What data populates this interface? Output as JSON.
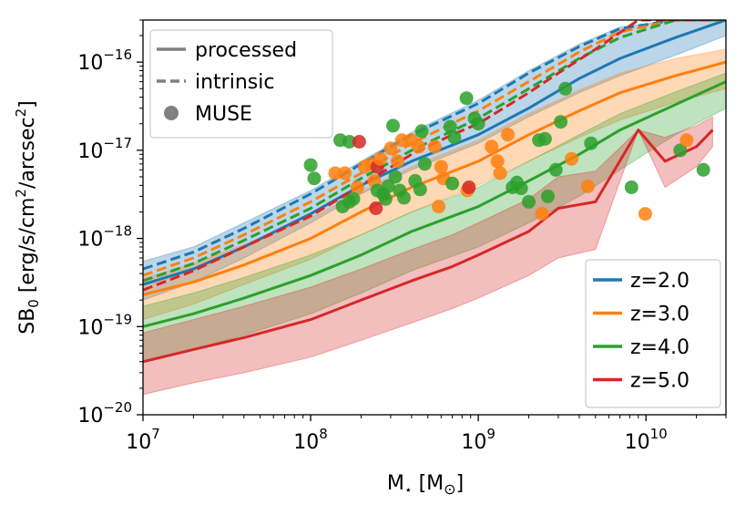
{
  "chart_data": {
    "type": "line",
    "xscale": "log",
    "yscale": "log",
    "xlim": [
      10000000.0,
      30000000000.0
    ],
    "ylim": [
      1e-20,
      3e-16
    ],
    "xlabel": "M⋆ [M⊙]",
    "xlabel_main": "M",
    "xlabel_sub": "⋆",
    "xlabel_unit_open": " [M",
    "xlabel_unit_sub": "⊙",
    "xlabel_unit_close": "]",
    "ylabel": "SB0 [erg/s/cm2/arcsec2]",
    "ylabel_main": "SB",
    "ylabel_sub": "0",
    "ylabel_unit_a": " [erg/s/cm",
    "ylabel_sup1": "2",
    "ylabel_unit_b": "/arcsec",
    "ylabel_sup2": "2",
    "ylabel_close": "]",
    "x_ticks": [
      {
        "value": 10000000.0,
        "base": "10",
        "exp": "7"
      },
      {
        "value": 100000000.0,
        "base": "10",
        "exp": "8"
      },
      {
        "value": 1000000000.0,
        "base": "10",
        "exp": "9"
      },
      {
        "value": 10000000000.0,
        "base": "10",
        "exp": "10"
      }
    ],
    "y_ticks": [
      {
        "value": 1e-20,
        "base": "10",
        "exp": "−20"
      },
      {
        "value": 1e-19,
        "base": "10",
        "exp": "−19"
      },
      {
        "value": 1e-18,
        "base": "10",
        "exp": "−18"
      },
      {
        "value": 1e-17,
        "base": "10",
        "exp": "−17"
      },
      {
        "value": 1e-16,
        "base": "10",
        "exp": "−16"
      }
    ],
    "style_legend": {
      "position": "top-left",
      "entries": [
        {
          "label": "processed",
          "kind": "solid"
        },
        {
          "label": "intrinsic",
          "kind": "dashed"
        },
        {
          "label": "MUSE",
          "kind": "marker"
        }
      ]
    },
    "color_legend": {
      "position": "bottom-right",
      "entries": [
        {
          "label": "z=2.0",
          "color": "#1f77b4"
        },
        {
          "label": "z=3.0",
          "color": "#ff7f0e"
        },
        {
          "label": "z=4.0",
          "color": "#2ca02c"
        },
        {
          "label": "z=5.0",
          "color": "#d62728"
        }
      ]
    },
    "series": [
      {
        "name": "z=2.0",
        "color": "#1f77b4",
        "x": [
          10000000.0,
          20000000.0,
          40000000.0,
          100000000.0,
          200000000.0,
          400000000.0,
          1000000000.0,
          2000000000.0,
          4000000000.0,
          7000000000.0,
          15000000000.0,
          30000000000.0
        ],
        "processed": [
          3e-19,
          4.5e-19,
          8e-19,
          1.9e-18,
          4e-18,
          7.5e-18,
          1.5e-17,
          3e-17,
          6.5e-17,
          1.1e-16,
          1.9e-16,
          3e-16
        ],
        "intrinsic": [
          4.5e-19,
          7e-19,
          1.3e-18,
          3.2e-18,
          7e-18,
          1.5e-17,
          3.4e-17,
          7.5e-17,
          1.5e-16,
          2.4e-16,
          3e-16,
          3e-16
        ],
        "band_low": [
          2e-19,
          3.2e-19,
          6e-19,
          1.5e-18,
          3.2e-18,
          6e-18,
          1.2e-17,
          2.4e-17,
          4.5e-17,
          7e-17,
          1.2e-16,
          2e-16
        ],
        "band_high": [
          5.5e-19,
          8e-19,
          1.5e-18,
          3.5e-18,
          7.5e-18,
          1.6e-17,
          3.7e-17,
          8e-17,
          1.6e-16,
          2.5e-16,
          3e-16,
          3e-16
        ]
      },
      {
        "name": "z=3.0",
        "color": "#ff7f0e",
        "x": [
          10000000.0,
          20000000.0,
          40000000.0,
          100000000.0,
          200000000.0,
          400000000.0,
          1000000000.0,
          2000000000.0,
          4000000000.0,
          7000000000.0,
          15000000000.0,
          30000000000.0
        ],
        "processed": [
          2.3e-19,
          3.2e-19,
          5e-19,
          1e-18,
          2e-18,
          3.8e-18,
          7.5e-18,
          1.5e-17,
          2.8e-17,
          4.5e-17,
          7e-17,
          1e-16
        ],
        "intrinsic": [
          3.8e-19,
          6e-19,
          1.1e-18,
          2.6e-18,
          5.5e-18,
          1.2e-17,
          2.8e-17,
          6e-17,
          1.3e-16,
          2.2e-16,
          3e-16,
          3e-16
        ],
        "band_low": [
          1.2e-19,
          1.8e-19,
          3e-19,
          5.8e-19,
          1.1e-18,
          2e-18,
          4e-18,
          7.5e-18,
          1.4e-17,
          2.2e-17,
          3.5e-17,
          5e-17
        ],
        "band_high": [
          3.5e-19,
          5.2e-19,
          8.5e-19,
          1.7e-18,
          3.4e-18,
          6.5e-18,
          1.3e-17,
          2.6e-17,
          4.8e-17,
          7.5e-17,
          1.1e-16,
          1.4e-16
        ]
      },
      {
        "name": "z=4.0",
        "color": "#2ca02c",
        "x": [
          10000000.0,
          20000000.0,
          40000000.0,
          100000000.0,
          200000000.0,
          400000000.0,
          1000000000.0,
          2000000000.0,
          4000000000.0,
          7000000000.0,
          15000000000.0,
          30000000000.0
        ],
        "processed": [
          1e-19,
          1.4e-19,
          2.1e-19,
          3.8e-19,
          6.5e-19,
          1.2e-18,
          2.3e-18,
          4.5e-18,
          9e-18,
          1.7e-17,
          3.3e-17,
          6e-17
        ],
        "intrinsic": [
          3.3e-19,
          5.2e-19,
          9.5e-19,
          2.2e-18,
          4.8e-18,
          1e-17,
          2.3e-17,
          5e-17,
          1.1e-16,
          1.9e-16,
          3e-16,
          3e-16
        ],
        "band_low": [
          4e-20,
          5.5e-20,
          8e-20,
          1.4e-19,
          2.4e-19,
          4.3e-19,
          8e-19,
          1.5e-18,
          3e-18,
          6e-18,
          1.5e-17,
          3e-17
        ],
        "band_high": [
          1.7e-19,
          2.4e-19,
          3.6e-19,
          6.5e-19,
          1.1e-18,
          2e-18,
          3.8e-18,
          7.5e-18,
          1.5e-17,
          2.6e-17,
          4.6e-17,
          7.5e-17
        ]
      },
      {
        "name": "z=5.0",
        "color": "#d62728",
        "x": [
          10000000.0,
          20000000.0,
          40000000.0,
          100000000.0,
          200000000.0,
          400000000.0,
          700000000.0,
          1000000000.0,
          2000000000.0,
          3000000000.0,
          5000000000.0,
          9000000000.0,
          13000000000.0,
          20000000000.0,
          25000000000.0
        ],
        "processed": [
          4e-20,
          5.5e-20,
          7.5e-20,
          1.2e-19,
          2e-19,
          3.3e-19,
          4.8e-19,
          6.5e-19,
          1.2e-18,
          2.2e-18,
          2.6e-18,
          1.7e-17,
          7.5e-18,
          1.1e-17,
          1.7e-17
        ],
        "intrinsic": [
          2.6e-19,
          4.3e-19,
          8e-19,
          1.8e-18,
          4e-18,
          9e-18,
          1.5e-17,
          2e-17,
          4.5e-17,
          7.5e-17,
          1.4e-16,
          3e-16,
          3e-16,
          3e-16,
          3e-16
        ],
        "band_low": [
          1.7e-20,
          2.3e-20,
          3e-20,
          4.5e-20,
          7e-20,
          1.1e-19,
          1.6e-19,
          2.1e-19,
          3.8e-19,
          6e-19,
          7.5e-19,
          1.7e-17,
          3.8e-18,
          6.5e-18,
          1.1e-17
        ],
        "band_high": [
          8.5e-20,
          1.2e-19,
          1.7e-19,
          2.8e-19,
          4.5e-19,
          7.5e-19,
          1.1e-18,
          1.5e-18,
          2.8e-18,
          5e-18,
          5.8e-18,
          1.7e-17,
          1.4e-17,
          1.9e-17,
          2.4e-17
        ]
      }
    ],
    "muse_points": [
      {
        "x": 150000000.0,
        "y": 1.3e-17,
        "color": "#2ca02c"
      },
      {
        "x": 170000000.0,
        "y": 1.25e-17,
        "color": "#2ca02c"
      },
      {
        "x": 195000000.0,
        "y": 1.25e-17,
        "color": "#d62728"
      },
      {
        "x": 100000000.0,
        "y": 6.8e-18,
        "color": "#2ca02c"
      },
      {
        "x": 105000000.0,
        "y": 4.8e-18,
        "color": "#2ca02c"
      },
      {
        "x": 140000000.0,
        "y": 5.5e-18,
        "color": "#ff7f0e"
      },
      {
        "x": 160000000.0,
        "y": 5.5e-18,
        "color": "#ff7f0e"
      },
      {
        "x": 190000000.0,
        "y": 3.8e-18,
        "color": "#ff7f0e"
      },
      {
        "x": 180000000.0,
        "y": 2.8e-18,
        "color": "#2ca02c"
      },
      {
        "x": 155000000.0,
        "y": 2.3e-18,
        "color": "#2ca02c"
      },
      {
        "x": 170000000.0,
        "y": 2.6e-18,
        "color": "#2ca02c"
      },
      {
        "x": 210000000.0,
        "y": 6.5e-18,
        "color": "#ff7f0e"
      },
      {
        "x": 230000000.0,
        "y": 7e-18,
        "color": "#ff7f0e"
      },
      {
        "x": 250000000.0,
        "y": 6.5e-18,
        "color": "#d62728"
      },
      {
        "x": 260000000.0,
        "y": 8e-18,
        "color": "#ff7f0e"
      },
      {
        "x": 240000000.0,
        "y": 4.5e-18,
        "color": "#ff7f0e"
      },
      {
        "x": 250000000.0,
        "y": 3.5e-18,
        "color": "#2ca02c"
      },
      {
        "x": 270000000.0,
        "y": 3.2e-18,
        "color": "#2ca02c"
      },
      {
        "x": 290000000.0,
        "y": 3.9e-18,
        "color": "#2ca02c"
      },
      {
        "x": 280000000.0,
        "y": 2.8e-18,
        "color": "#2ca02c"
      },
      {
        "x": 245000000.0,
        "y": 2.2e-18,
        "color": "#d62728"
      },
      {
        "x": 310000000.0,
        "y": 1.9e-17,
        "color": "#2ca02c"
      },
      {
        "x": 300000000.0,
        "y": 1.05e-17,
        "color": "#ff7f0e"
      },
      {
        "x": 330000000.0,
        "y": 7.5e-18,
        "color": "#ff7f0e"
      },
      {
        "x": 350000000.0,
        "y": 1.3e-17,
        "color": "#ff7f0e"
      },
      {
        "x": 320000000.0,
        "y": 5e-18,
        "color": "#2ca02c"
      },
      {
        "x": 340000000.0,
        "y": 3.5e-18,
        "color": "#2ca02c"
      },
      {
        "x": 360000000.0,
        "y": 2.9e-18,
        "color": "#2ca02c"
      },
      {
        "x": 400000000.0,
        "y": 1.3e-17,
        "color": "#ff7f0e"
      },
      {
        "x": 440000000.0,
        "y": 1.1e-17,
        "color": "#ff7f0e"
      },
      {
        "x": 460000000.0,
        "y": 1.65e-17,
        "color": "#2ca02c"
      },
      {
        "x": 420000000.0,
        "y": 4.5e-18,
        "color": "#2ca02c"
      },
      {
        "x": 450000000.0,
        "y": 3.6e-18,
        "color": "#2ca02c"
      },
      {
        "x": 480000000.0,
        "y": 7e-18,
        "color": "#2ca02c"
      },
      {
        "x": 550000000.0,
        "y": 1.1e-17,
        "color": "#ff7f0e"
      },
      {
        "x": 600000000.0,
        "y": 6.5e-18,
        "color": "#ff7f0e"
      },
      {
        "x": 620000000.0,
        "y": 4.8e-18,
        "color": "#ff7f0e"
      },
      {
        "x": 580000000.0,
        "y": 2.3e-18,
        "color": "#ff7f0e"
      },
      {
        "x": 680000000.0,
        "y": 1.85e-17,
        "color": "#2ca02c"
      },
      {
        "x": 720000000.0,
        "y": 1.4e-17,
        "color": "#2ca02c"
      },
      {
        "x": 700000000.0,
        "y": 4.2e-18,
        "color": "#2ca02c"
      },
      {
        "x": 850000000.0,
        "y": 3.9e-17,
        "color": "#2ca02c"
      },
      {
        "x": 950000000.0,
        "y": 2.3e-17,
        "color": "#2ca02c"
      },
      {
        "x": 1000000000.0,
        "y": 2e-17,
        "color": "#2ca02c"
      },
      {
        "x": 860000000.0,
        "y": 3.5e-18,
        "color": "#ff7f0e"
      },
      {
        "x": 880000000.0,
        "y": 3.8e-18,
        "color": "#d62728"
      },
      {
        "x": 1200000000.0,
        "y": 1.1e-17,
        "color": "#ff7f0e"
      },
      {
        "x": 1300000000.0,
        "y": 7.5e-18,
        "color": "#ff7f0e"
      },
      {
        "x": 1350000000.0,
        "y": 5.5e-18,
        "color": "#ff7f0e"
      },
      {
        "x": 1500000000.0,
        "y": 1.5e-17,
        "color": "#ff7f0e"
      },
      {
        "x": 1600000000.0,
        "y": 3.8e-18,
        "color": "#2ca02c"
      },
      {
        "x": 1800000000.0,
        "y": 3.7e-18,
        "color": "#2ca02c"
      },
      {
        "x": 1700000000.0,
        "y": 4.3e-18,
        "color": "#2ca02c"
      },
      {
        "x": 2000000000.0,
        "y": 2.6e-18,
        "color": "#2ca02c"
      },
      {
        "x": 2300000000.0,
        "y": 1.3e-17,
        "color": "#2ca02c"
      },
      {
        "x": 2500000000.0,
        "y": 1.35e-17,
        "color": "#2ca02c"
      },
      {
        "x": 2600000000.0,
        "y": 3e-18,
        "color": "#2ca02c"
      },
      {
        "x": 2400000000.0,
        "y": 1.9e-18,
        "color": "#ff7f0e"
      },
      {
        "x": 3100000000.0,
        "y": 2.1e-17,
        "color": "#2ca02c"
      },
      {
        "x": 3300000000.0,
        "y": 5e-17,
        "color": "#2ca02c"
      },
      {
        "x": 2900000000.0,
        "y": 6e-18,
        "color": "#2ca02c"
      },
      {
        "x": 3600000000.0,
        "y": 8e-18,
        "color": "#ff7f0e"
      },
      {
        "x": 4500000000.0,
        "y": 3.9e-18,
        "color": "#ff7f0e"
      },
      {
        "x": 4700000000.0,
        "y": 1.2e-17,
        "color": "#2ca02c"
      },
      {
        "x": 8200000000.0,
        "y": 3.8e-18,
        "color": "#2ca02c"
      },
      {
        "x": 9900000000.0,
        "y": 1.9e-18,
        "color": "#ff7f0e"
      },
      {
        "x": 16000000000.0,
        "y": 1e-17,
        "color": "#2ca02c"
      },
      {
        "x": 17500000000.0,
        "y": 1.3e-17,
        "color": "#ff7f0e"
      },
      {
        "x": 22000000000.0,
        "y": 6e-18,
        "color": "#2ca02c"
      }
    ]
  }
}
